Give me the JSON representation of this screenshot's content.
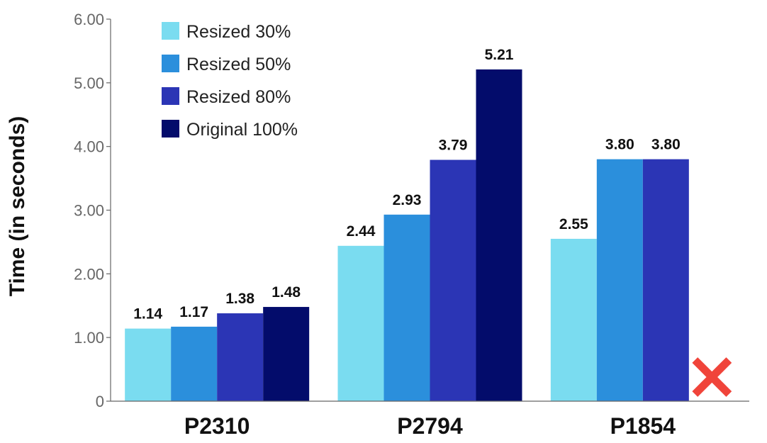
{
  "chart_data": {
    "type": "bar",
    "title": "",
    "xlabel": "",
    "ylabel": "Time (in seconds)",
    "ylim": [
      0,
      6
    ],
    "yticks": [
      "0",
      "1.00",
      "2.00",
      "3.00",
      "4.00",
      "5.00",
      "6.00"
    ],
    "yticks_values": [
      0,
      1,
      2,
      3,
      4,
      5,
      6
    ],
    "categories": [
      "P2310",
      "P2794",
      "P1854"
    ],
    "grid": false,
    "legend_position": "top-left",
    "series": [
      {
        "name": "Resized 30%",
        "color": "#7adcf0",
        "values": [
          1.14,
          2.44,
          2.55
        ],
        "labels": [
          "1.14",
          "2.44",
          "2.55"
        ]
      },
      {
        "name": "Resized 50%",
        "color": "#2b8fdc",
        "values": [
          1.17,
          2.93,
          3.8
        ],
        "labels": [
          "1.17",
          "2.93",
          "3.80"
        ]
      },
      {
        "name": "Resized 80%",
        "color": "#2b35b5",
        "values": [
          1.38,
          3.79,
          3.8
        ],
        "labels": [
          "1.38",
          "3.79",
          "3.80"
        ]
      },
      {
        "name": "Original 100%",
        "color": "#030c6b",
        "values": [
          1.48,
          5.21,
          null
        ],
        "labels": [
          "1.48",
          "5.21",
          ""
        ]
      }
    ],
    "missing_marker": {
      "category": "P1854",
      "series": "Original 100%",
      "symbol": "cross",
      "color": "#f0443a"
    }
  }
}
